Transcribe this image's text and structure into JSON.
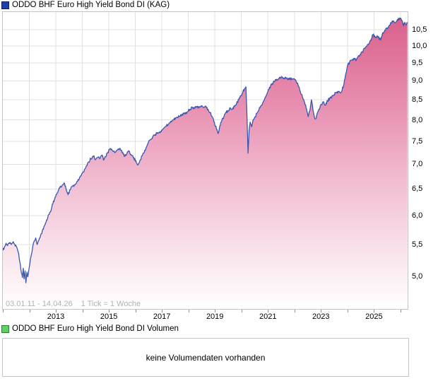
{
  "header": {
    "title": "ODDO BHF Euro High Yield Bond DI (KAG)",
    "marker_color": "#1c3fae",
    "marker_border_color": "#0a1f5c"
  },
  "volume": {
    "title": "ODDO BHF Euro High Yield Bond DI Volumen",
    "marker_color": "#62cf66",
    "marker_border_color": "#2e7d32",
    "message": "keine Volumendaten vorhanden"
  },
  "chart_data": {
    "type": "area",
    "title": "ODDO BHF Euro High Yield Bond DI (KAG)",
    "date_range": "03.01.11 - 14.04.26",
    "tick_info": "1 Tick = 1 Woche",
    "x_range": [
      2011.0,
      2026.27
    ],
    "x_label_years": [
      2013,
      2015,
      2017,
      2019,
      2021,
      2023,
      2025
    ],
    "x_labels": [
      "2013",
      "2015",
      "2017",
      "2019",
      "2021",
      "2023",
      "2025"
    ],
    "y_scale": "log",
    "y_axis_range": [
      4.53,
      11.07
    ],
    "y_tick_values": [
      10.5,
      10.0,
      9.5,
      9.0,
      8.5,
      8.0,
      7.5,
      7.0,
      6.5,
      6.0,
      5.5,
      5.0
    ],
    "y_tick_labels": [
      "10,5",
      "10,0",
      "9,5",
      "9,0",
      "8,5",
      "8,0",
      "7,5",
      "7,0",
      "6,5",
      "6,0",
      "5,5",
      "5,0"
    ],
    "grid": true,
    "grid_color": "#e0e0e0",
    "line_color": "#3a57ae",
    "area_gradient": [
      [
        0,
        "#d9618c"
      ],
      [
        0.28,
        "#e78cae"
      ],
      [
        0.55,
        "#f1bad0"
      ],
      [
        0.8,
        "#f9e2eb"
      ],
      [
        1,
        "#ffffff"
      ]
    ],
    "weekly_jitter_pct": 0.4,
    "series": [
      {
        "name": "ODDO BHF Euro High Yield Bond DI (KAG)",
        "points": [
          [
            2011.0,
            5.4
          ],
          [
            2011.06,
            5.46
          ],
          [
            2011.12,
            5.52
          ],
          [
            2011.18,
            5.48
          ],
          [
            2011.25,
            5.53
          ],
          [
            2011.32,
            5.5
          ],
          [
            2011.38,
            5.54
          ],
          [
            2011.45,
            5.5
          ],
          [
            2011.52,
            5.46
          ],
          [
            2011.58,
            5.38
          ],
          [
            2011.64,
            5.22
          ],
          [
            2011.7,
            5.05
          ],
          [
            2011.74,
            4.98
          ],
          [
            2011.77,
            5.12
          ],
          [
            2011.8,
            4.96
          ],
          [
            2011.84,
            5.08
          ],
          [
            2011.87,
            4.9
          ],
          [
            2011.91,
            5.06
          ],
          [
            2011.94,
            4.99
          ],
          [
            2012.0,
            5.14
          ],
          [
            2012.06,
            5.3
          ],
          [
            2012.12,
            5.44
          ],
          [
            2012.18,
            5.55
          ],
          [
            2012.24,
            5.61
          ],
          [
            2012.3,
            5.5
          ],
          [
            2012.36,
            5.57
          ],
          [
            2012.45,
            5.68
          ],
          [
            2012.55,
            5.8
          ],
          [
            2012.65,
            5.92
          ],
          [
            2012.75,
            6.02
          ],
          [
            2012.85,
            6.16
          ],
          [
            2012.95,
            6.3
          ],
          [
            2013.05,
            6.42
          ],
          [
            2013.15,
            6.52
          ],
          [
            2013.25,
            6.58
          ],
          [
            2013.33,
            6.61
          ],
          [
            2013.4,
            6.48
          ],
          [
            2013.46,
            6.39
          ],
          [
            2013.54,
            6.48
          ],
          [
            2013.62,
            6.55
          ],
          [
            2013.72,
            6.58
          ],
          [
            2013.82,
            6.65
          ],
          [
            2013.92,
            6.74
          ],
          [
            2014.02,
            6.84
          ],
          [
            2014.12,
            6.92
          ],
          [
            2014.22,
            7.04
          ],
          [
            2014.32,
            7.12
          ],
          [
            2014.42,
            7.18
          ],
          [
            2014.5,
            7.1
          ],
          [
            2014.58,
            7.15
          ],
          [
            2014.66,
            7.12
          ],
          [
            2014.74,
            7.2
          ],
          [
            2014.8,
            7.09
          ],
          [
            2014.88,
            7.16
          ],
          [
            2014.96,
            7.26
          ],
          [
            2015.06,
            7.34
          ],
          [
            2015.14,
            7.29
          ],
          [
            2015.22,
            7.25
          ],
          [
            2015.32,
            7.31
          ],
          [
            2015.42,
            7.35
          ],
          [
            2015.52,
            7.26
          ],
          [
            2015.6,
            7.17
          ],
          [
            2015.68,
            7.23
          ],
          [
            2015.76,
            7.29
          ],
          [
            2015.84,
            7.21
          ],
          [
            2015.92,
            7.14
          ],
          [
            2016.02,
            7.08
          ],
          [
            2016.1,
            6.99
          ],
          [
            2016.16,
            7.06
          ],
          [
            2016.25,
            7.18
          ],
          [
            2016.35,
            7.3
          ],
          [
            2016.45,
            7.42
          ],
          [
            2016.55,
            7.53
          ],
          [
            2016.65,
            7.6
          ],
          [
            2016.75,
            7.66
          ],
          [
            2016.85,
            7.7
          ],
          [
            2016.95,
            7.73
          ],
          [
            2017.05,
            7.79
          ],
          [
            2017.15,
            7.85
          ],
          [
            2017.25,
            7.89
          ],
          [
            2017.35,
            7.95
          ],
          [
            2017.45,
            8.01
          ],
          [
            2017.55,
            8.06
          ],
          [
            2017.65,
            8.09
          ],
          [
            2017.75,
            8.13
          ],
          [
            2017.85,
            8.15
          ],
          [
            2017.95,
            8.19
          ],
          [
            2018.05,
            8.26
          ],
          [
            2018.15,
            8.31
          ],
          [
            2018.22,
            8.28
          ],
          [
            2018.3,
            8.33
          ],
          [
            2018.4,
            8.3
          ],
          [
            2018.5,
            8.35
          ],
          [
            2018.58,
            8.31
          ],
          [
            2018.66,
            8.34
          ],
          [
            2018.74,
            8.26
          ],
          [
            2018.82,
            8.18
          ],
          [
            2018.9,
            8.08
          ],
          [
            2018.98,
            7.94
          ],
          [
            2019.06,
            7.78
          ],
          [
            2019.12,
            7.68
          ],
          [
            2019.18,
            7.84
          ],
          [
            2019.26,
            7.98
          ],
          [
            2019.34,
            8.08
          ],
          [
            2019.42,
            8.18
          ],
          [
            2019.5,
            8.22
          ],
          [
            2019.58,
            8.3
          ],
          [
            2019.66,
            8.26
          ],
          [
            2019.74,
            8.33
          ],
          [
            2019.82,
            8.42
          ],
          [
            2019.9,
            8.5
          ],
          [
            2019.98,
            8.6
          ],
          [
            2020.06,
            8.72
          ],
          [
            2020.13,
            8.8
          ],
          [
            2020.17,
            8.84
          ],
          [
            2020.21,
            8.1
          ],
          [
            2020.25,
            7.24
          ],
          [
            2020.29,
            7.75
          ],
          [
            2020.33,
            7.95
          ],
          [
            2020.38,
            7.84
          ],
          [
            2020.44,
            8.0
          ],
          [
            2020.52,
            8.08
          ],
          [
            2020.6,
            8.18
          ],
          [
            2020.7,
            8.3
          ],
          [
            2020.8,
            8.42
          ],
          [
            2020.9,
            8.56
          ],
          [
            2021.0,
            8.72
          ],
          [
            2021.1,
            8.86
          ],
          [
            2021.2,
            8.96
          ],
          [
            2021.3,
            9.02
          ],
          [
            2021.4,
            9.06
          ],
          [
            2021.5,
            9.1
          ],
          [
            2021.58,
            9.06
          ],
          [
            2021.66,
            9.1
          ],
          [
            2021.74,
            9.04
          ],
          [
            2021.82,
            9.08
          ],
          [
            2021.9,
            9.04
          ],
          [
            2021.98,
            9.06
          ],
          [
            2022.06,
            9.0
          ],
          [
            2022.14,
            8.88
          ],
          [
            2022.22,
            8.72
          ],
          [
            2022.3,
            8.58
          ],
          [
            2022.38,
            8.44
          ],
          [
            2022.46,
            8.26
          ],
          [
            2022.52,
            8.08
          ],
          [
            2022.58,
            8.22
          ],
          [
            2022.64,
            8.5
          ],
          [
            2022.68,
            8.36
          ],
          [
            2022.72,
            8.18
          ],
          [
            2022.76,
            8.05
          ],
          [
            2022.8,
            8.03
          ],
          [
            2022.86,
            8.16
          ],
          [
            2022.92,
            8.26
          ],
          [
            2023.0,
            8.38
          ],
          [
            2023.08,
            8.45
          ],
          [
            2023.16,
            8.36
          ],
          [
            2023.25,
            8.48
          ],
          [
            2023.35,
            8.55
          ],
          [
            2023.45,
            8.6
          ],
          [
            2023.55,
            8.68
          ],
          [
            2023.65,
            8.72
          ],
          [
            2023.73,
            8.68
          ],
          [
            2023.8,
            8.76
          ],
          [
            2023.87,
            8.92
          ],
          [
            2023.94,
            9.2
          ],
          [
            2024.0,
            9.42
          ],
          [
            2024.08,
            9.52
          ],
          [
            2024.16,
            9.58
          ],
          [
            2024.24,
            9.63
          ],
          [
            2024.32,
            9.56
          ],
          [
            2024.4,
            9.68
          ],
          [
            2024.48,
            9.75
          ],
          [
            2024.56,
            9.82
          ],
          [
            2024.64,
            9.93
          ],
          [
            2024.72,
            9.99
          ],
          [
            2024.8,
            10.06
          ],
          [
            2024.88,
            10.16
          ],
          [
            2024.96,
            10.34
          ],
          [
            2025.04,
            10.26
          ],
          [
            2025.12,
            10.31
          ],
          [
            2025.19,
            10.24
          ],
          [
            2025.26,
            10.18
          ],
          [
            2025.33,
            10.4
          ],
          [
            2025.41,
            10.48
          ],
          [
            2025.49,
            10.54
          ],
          [
            2025.57,
            10.63
          ],
          [
            2025.65,
            10.72
          ],
          [
            2025.73,
            10.78
          ],
          [
            2025.8,
            10.72
          ],
          [
            2025.87,
            10.79
          ],
          [
            2025.94,
            10.83
          ],
          [
            2026.0,
            10.87
          ],
          [
            2026.06,
            10.79
          ],
          [
            2026.11,
            10.62
          ],
          [
            2026.16,
            10.73
          ],
          [
            2026.21,
            10.66
          ],
          [
            2026.26,
            10.7
          ]
        ]
      }
    ]
  }
}
